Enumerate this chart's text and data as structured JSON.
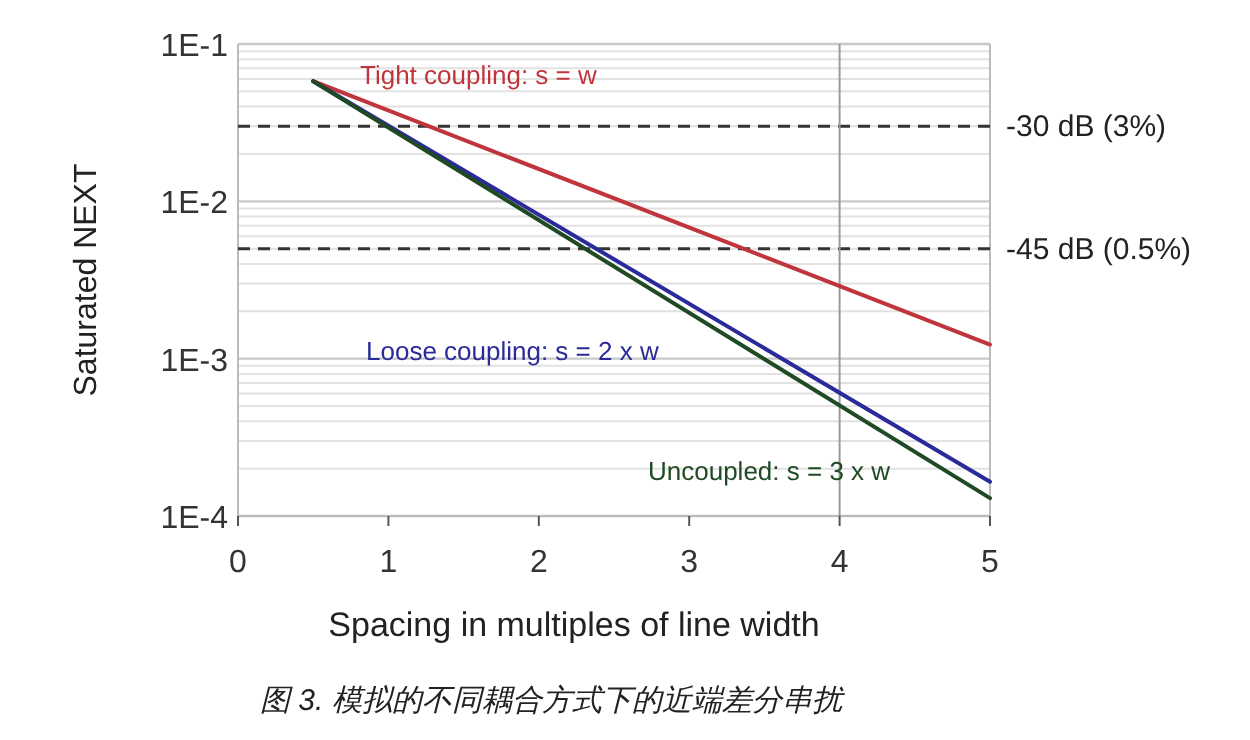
{
  "chart_data": {
    "type": "line",
    "xlabel": "Spacing in multiples of line width",
    "ylabel": "Saturated NEXT",
    "log": "y",
    "grid": "y",
    "legend": false,
    "marker": "none",
    "line_style": "solid",
    "xlim": [
      0,
      5
    ],
    "xticks": [
      0,
      1,
      2,
      3,
      4,
      5
    ],
    "ylim": [
      0.0001,
      0.1
    ],
    "yticks": [
      {
        "value": 0.0001,
        "label": "1E-4"
      },
      {
        "value": 0.001,
        "label": "1E-3"
      },
      {
        "value": 0.01,
        "label": "1E-2"
      },
      {
        "value": 0.1,
        "label": "1E-1"
      }
    ],
    "x": [
      0.5,
      5
    ],
    "series": [
      {
        "name": "Tight coupling: s = w",
        "color": "#c0343c",
        "values": [
          0.058,
          0.00123
        ]
      },
      {
        "name": "Loose coupling: s = 2 x w",
        "color": "#2a2a9a",
        "values": [
          0.058,
          0.000165
        ]
      },
      {
        "name": "Uncoupled: s = 3 x w",
        "color": "#1f4a24",
        "values": [
          0.058,
          0.00013
        ]
      }
    ],
    "ref_lines": [
      {
        "axis": "y",
        "value": 0.03,
        "label": "-30 dB (3%)",
        "color": "#333333",
        "line_style": "dashed"
      },
      {
        "axis": "y",
        "value": 0.005,
        "label": "-45 dB (0.5%)",
        "color": "#333333",
        "line_style": "dashed"
      },
      {
        "axis": "x",
        "value": 4,
        "label": null,
        "color": "#999999",
        "line_style": "solid"
      }
    ],
    "annotations": [
      "图 3.  模拟的不同耦合方式下的近端差分串扰"
    ]
  }
}
